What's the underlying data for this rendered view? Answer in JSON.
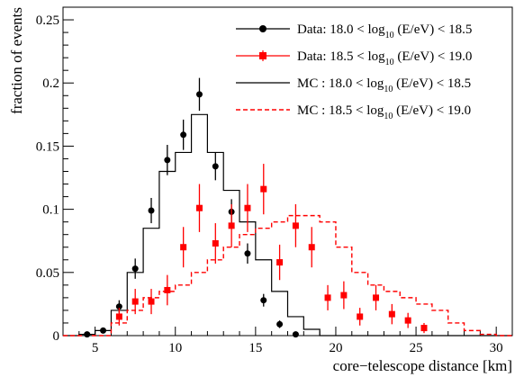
{
  "chart_data": {
    "type": "histogram",
    "xlabel": "core−telescope distance [km]",
    "ylabel": "fraction of events",
    "xlim": [
      3,
      31
    ],
    "ylim": [
      0,
      0.26
    ],
    "x_ticks": [
      5,
      10,
      15,
      20,
      25,
      30
    ],
    "x_tick_labels": [
      "5",
      "10",
      "15",
      "20",
      "25",
      "30"
    ],
    "y_ticks": [
      0,
      0.05,
      0.1,
      0.15,
      0.2,
      0.25
    ],
    "y_tick_labels": [
      "0",
      "0.05",
      "0.1",
      "0.15",
      "0.2",
      "0.25"
    ],
    "bin_width": 1,
    "grid": false,
    "legend_position": "top-right",
    "legend": [
      {
        "prefix": "Data: 18.0 < log",
        "sub": "10",
        "suffix": " (E/eV) < 18.5",
        "style": "data-circle",
        "color": "#000000"
      },
      {
        "prefix": "Data: 18.5 < log",
        "sub": "10",
        "suffix": " (E/eV) < 19.0",
        "style": "data-square",
        "color": "#ff0000"
      },
      {
        "prefix": "MC  : 18.0 < log",
        "sub": "10",
        "suffix": " (E/eV) < 18.5",
        "style": "solid-line",
        "color": "#000000"
      },
      {
        "prefix": "MC  : 18.5 < log",
        "sub": "10",
        "suffix": " (E/eV) < 19.0",
        "style": "dashed-line",
        "color": "#ff0000"
      }
    ],
    "series": [
      {
        "kind": "points",
        "marker": "circle",
        "color": "#000000",
        "points": [
          {
            "x": 4.5,
            "y": 0.001,
            "err": 0.001
          },
          {
            "x": 5.5,
            "y": 0.004,
            "err": 0.002
          },
          {
            "x": 6.5,
            "y": 0.023,
            "err": 0.005
          },
          {
            "x": 7.5,
            "y": 0.053,
            "err": 0.008
          },
          {
            "x": 8.5,
            "y": 0.099,
            "err": 0.01
          },
          {
            "x": 9.5,
            "y": 0.139,
            "err": 0.012
          },
          {
            "x": 10.5,
            "y": 0.159,
            "err": 0.012
          },
          {
            "x": 11.5,
            "y": 0.191,
            "err": 0.013
          },
          {
            "x": 12.5,
            "y": 0.134,
            "err": 0.011
          },
          {
            "x": 13.5,
            "y": 0.098,
            "err": 0.01
          },
          {
            "x": 14.5,
            "y": 0.065,
            "err": 0.008
          },
          {
            "x": 15.5,
            "y": 0.028,
            "err": 0.005
          },
          {
            "x": 16.5,
            "y": 0.009,
            "err": 0.003
          },
          {
            "x": 17.5,
            "y": 0.001,
            "err": 0.001
          }
        ]
      },
      {
        "kind": "points",
        "marker": "square",
        "color": "#ff0000",
        "points": [
          {
            "x": 6.5,
            "y": 0.015,
            "err": 0.007
          },
          {
            "x": 7.5,
            "y": 0.027,
            "err": 0.01
          },
          {
            "x": 8.5,
            "y": 0.027,
            "err": 0.01
          },
          {
            "x": 9.5,
            "y": 0.036,
            "err": 0.012
          },
          {
            "x": 10.5,
            "y": 0.07,
            "err": 0.016
          },
          {
            "x": 11.5,
            "y": 0.101,
            "err": 0.019
          },
          {
            "x": 12.5,
            "y": 0.073,
            "err": 0.016
          },
          {
            "x": 13.5,
            "y": 0.087,
            "err": 0.017
          },
          {
            "x": 14.5,
            "y": 0.101,
            "err": 0.019
          },
          {
            "x": 15.5,
            "y": 0.116,
            "err": 0.02
          },
          {
            "x": 16.5,
            "y": 0.058,
            "err": 0.014
          },
          {
            "x": 17.5,
            "y": 0.087,
            "err": 0.017
          },
          {
            "x": 18.5,
            "y": 0.07,
            "err": 0.016
          },
          {
            "x": 19.5,
            "y": 0.03,
            "err": 0.01
          },
          {
            "x": 20.5,
            "y": 0.032,
            "err": 0.011
          },
          {
            "x": 21.5,
            "y": 0.015,
            "err": 0.007
          },
          {
            "x": 22.5,
            "y": 0.03,
            "err": 0.01
          },
          {
            "x": 23.5,
            "y": 0.017,
            "err": 0.008
          },
          {
            "x": 24.5,
            "y": 0.012,
            "err": 0.006
          },
          {
            "x": 25.5,
            "y": 0.006,
            "err": 0.004
          }
        ]
      },
      {
        "kind": "step",
        "style": "solid",
        "color": "#000000",
        "x_start": 3,
        "values": [
          0,
          0.001,
          0.004,
          0.02,
          0.05,
          0.085,
          0.13,
          0.145,
          0.175,
          0.145,
          0.115,
          0.09,
          0.06,
          0.035,
          0.015,
          0.005,
          0,
          0,
          0,
          0,
          0,
          0,
          0,
          0,
          0,
          0,
          0,
          0
        ]
      },
      {
        "kind": "step",
        "style": "dashed",
        "color": "#ff0000",
        "x_start": 3,
        "values": [
          0,
          0,
          0,
          0.01,
          0.02,
          0.03,
          0.035,
          0.04,
          0.05,
          0.06,
          0.07,
          0.08,
          0.085,
          0.09,
          0.095,
          0.095,
          0.09,
          0.07,
          0.05,
          0.04,
          0.035,
          0.03,
          0.025,
          0.02,
          0.01,
          0.004,
          0.001,
          0
        ]
      }
    ]
  }
}
